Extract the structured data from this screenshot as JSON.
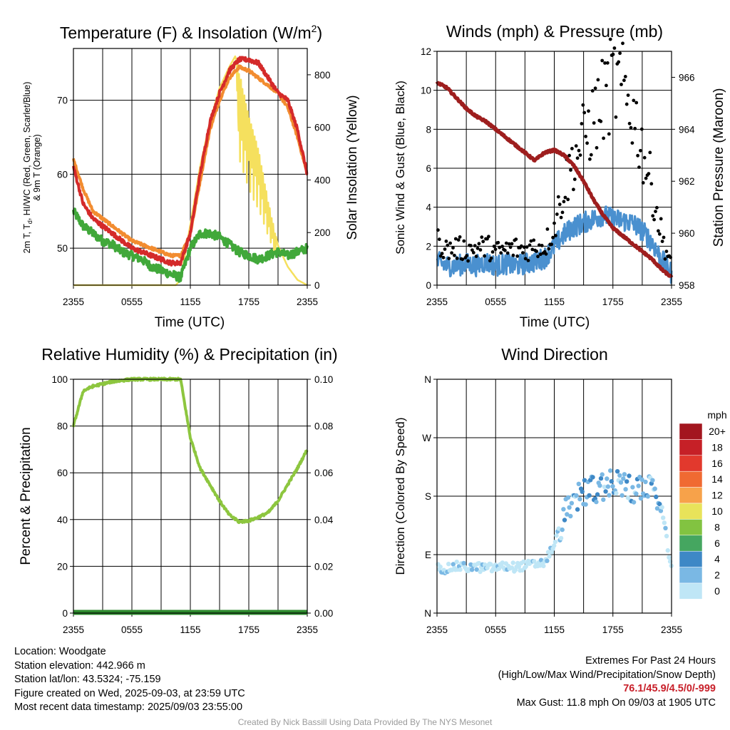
{
  "panels": {
    "temperature": {
      "title_main": "Temperature (F) & Insolation (W/m",
      "title_sup": "2",
      "title_end": ")",
      "ylabel_left_1_parts": [
        "2m T, T",
        "d",
        ", HI/WC (Red, Green, Scarlet/Blue)"
      ],
      "ylabel_left_2": "& 9m T (Orange)",
      "ylabel_right": "Solar Insolation (Yellow)",
      "xlabel": "Time (UTC)"
    },
    "winds": {
      "title": "Winds (mph) & Pressure (mb)",
      "ylabel_left": "Sonic Wind & Gust (Blue, Black)",
      "ylabel_right": "Station Pressure (Maroon)",
      "xlabel": "Time (UTC)"
    },
    "humidity": {
      "title": "Relative Humidity (%) & Precipitation (in)",
      "ylabel_left": "Percent & Precipitation"
    },
    "direction": {
      "title": "Wind Direction",
      "ylabel_left": "Direction (Colored By Speed)",
      "colorbar_title": "mph",
      "colorbar_labels": [
        "20+",
        "18",
        "16",
        "14",
        "12",
        "10",
        "8",
        "6",
        "4",
        "2",
        "0"
      ],
      "colorbar_colors": [
        "#a3161f",
        "#c62027",
        "#e2392d",
        "#f06a32",
        "#f7a24a",
        "#e8e35a",
        "#82c341",
        "#45a660",
        "#3e88c6",
        "#7ab8e4",
        "#bfe6f6"
      ]
    }
  },
  "chart_data": [
    {
      "type": "line",
      "title": "Temperature (F) & Insolation (W/m2)",
      "xlabel": "Time (UTC)",
      "x_ticks": [
        "2355",
        "0555",
        "1155",
        "1755",
        "2355"
      ],
      "ylim": [
        45,
        77
      ],
      "y_ticks": [
        50,
        60,
        70
      ],
      "y2lim": [
        0,
        900
      ],
      "y2_ticks": [
        0,
        200,
        400,
        600,
        800
      ],
      "series": [
        {
          "name": "2m T",
          "color": "#d42a2a",
          "x_hours": [
            0,
            1,
            2,
            3,
            4,
            5,
            6,
            7,
            8,
            9,
            10,
            11,
            12,
            13,
            14,
            15,
            16,
            17,
            18,
            19,
            20,
            21,
            22,
            23,
            24
          ],
          "values": [
            61,
            56,
            54,
            53,
            52,
            51,
            50,
            49.5,
            49,
            48.5,
            48,
            48,
            52,
            60,
            67,
            71,
            74,
            75.5,
            75.5,
            75,
            73,
            71,
            70,
            66,
            60
          ]
        },
        {
          "name": "9m T",
          "color": "#f28c30",
          "x_hours": [
            0,
            1,
            2,
            3,
            4,
            5,
            6,
            7,
            8,
            9,
            10,
            11,
            12,
            13,
            14,
            15,
            16,
            17,
            18,
            19,
            20,
            21,
            22,
            23,
            24
          ],
          "values": [
            62,
            58,
            55,
            54,
            53,
            52,
            51,
            50.5,
            50,
            49.5,
            49,
            49,
            52,
            59,
            66,
            70,
            73,
            74.5,
            74,
            73,
            72,
            71,
            69,
            65,
            60
          ]
        },
        {
          "name": "Td",
          "color": "#41a83a",
          "x_hours": [
            0,
            1,
            2,
            3,
            4,
            5,
            6,
            7,
            8,
            9,
            10,
            11,
            12,
            13,
            14,
            15,
            16,
            17,
            18,
            19,
            20,
            21,
            22,
            23,
            24
          ],
          "values": [
            55,
            53,
            52,
            51,
            50.5,
            49.5,
            49,
            48.5,
            47.5,
            47,
            46.5,
            46,
            50,
            52,
            52,
            51.5,
            50.5,
            49.5,
            49,
            48.5,
            49,
            49.5,
            49,
            49.5,
            50
          ]
        },
        {
          "name": "Solar Insolation",
          "axis": "right",
          "color": "#f5e05e",
          "x_hours": [
            0,
            10.5,
            11,
            12,
            13,
            14,
            15,
            16,
            16.6,
            17,
            18,
            19,
            20,
            21,
            22,
            23,
            24
          ],
          "values": [
            0,
            0,
            20,
            230,
            450,
            620,
            750,
            830,
            870,
            820,
            650,
            520,
            320,
            150,
            70,
            20,
            0
          ]
        }
      ]
    },
    {
      "type": "line",
      "title": "Winds (mph) & Pressure (mb)",
      "xlabel": "Time (UTC)",
      "x_ticks": [
        "2355",
        "0555",
        "1155",
        "1755",
        "2355"
      ],
      "ylim": [
        0,
        12
      ],
      "y_ticks": [
        0,
        2,
        4,
        6,
        8,
        10,
        12
      ],
      "y2lim": [
        958,
        967
      ],
      "y2_ticks": [
        958,
        960,
        962,
        964,
        966
      ],
      "series": [
        {
          "name": "Sonic Wind",
          "color": "#4a90cf",
          "x_hours": [
            0,
            1,
            2,
            3,
            4,
            5,
            6,
            7,
            8,
            9,
            10,
            11,
            12,
            13,
            14,
            15,
            16,
            17,
            18,
            19,
            20,
            21,
            22,
            23,
            24
          ],
          "values": [
            1.2,
            1.0,
            1.0,
            1.1,
            1.0,
            1.2,
            1.0,
            1.1,
            1.0,
            1.1,
            1.2,
            1.4,
            2.0,
            2.6,
            3.0,
            3.2,
            3.4,
            3.6,
            3.4,
            3.3,
            3.2,
            2.8,
            2.2,
            1.3,
            0.6
          ]
        },
        {
          "name": "Gust",
          "color": "#000000",
          "x_hours": [
            0,
            1,
            2,
            3,
            4,
            5,
            6,
            7,
            8,
            9,
            10,
            11,
            12,
            13,
            14,
            15,
            16,
            17,
            18,
            19,
            20,
            21,
            22,
            23,
            24
          ],
          "values": [
            2.3,
            1.8,
            1.9,
            1.8,
            1.9,
            2.0,
            1.7,
            1.8,
            1.9,
            1.8,
            2.0,
            2.0,
            3.0,
            5.0,
            6.5,
            7.5,
            8.5,
            9.5,
            10.5,
            10.0,
            9.0,
            7.0,
            5.0,
            2.5,
            1.0
          ]
        },
        {
          "name": "Station Pressure",
          "axis": "right",
          "color": "#9e1e1e",
          "x_hours": [
            0,
            1,
            2,
            3,
            4,
            5,
            6,
            7,
            8,
            9,
            10,
            11,
            12,
            13,
            14,
            15,
            16,
            17,
            18,
            19,
            20,
            21,
            22,
            23,
            24
          ],
          "values": [
            965.8,
            965.6,
            965.2,
            964.8,
            964.5,
            964.3,
            964.0,
            963.7,
            963.4,
            963.1,
            962.8,
            963.1,
            963.2,
            963.0,
            962.6,
            962.0,
            961.3,
            960.7,
            960.2,
            959.9,
            959.6,
            959.3,
            959.0,
            958.6,
            958.3
          ]
        }
      ]
    },
    {
      "type": "line",
      "title": "Relative Humidity (%) & Precipitation (in)",
      "x_ticks": [
        "2355",
        "0555",
        "1155",
        "1755",
        "2355"
      ],
      "ylim": [
        0,
        100
      ],
      "y_ticks": [
        0,
        20,
        40,
        60,
        80,
        100
      ],
      "y2lim": [
        0,
        0.1
      ],
      "y2_ticks": [
        "0.00",
        "0.02",
        "0.04",
        "0.06",
        "0.08",
        "0.10"
      ],
      "series": [
        {
          "name": "Relative Humidity",
          "color": "#8dc63f",
          "x_hours": [
            0,
            1,
            2,
            3,
            4,
            5,
            6,
            7,
            8,
            9,
            10,
            11,
            12,
            13,
            14,
            15,
            16,
            17,
            18,
            19,
            20,
            21,
            22,
            23,
            24
          ],
          "values": [
            80,
            95,
            97,
            98,
            99,
            99.5,
            100,
            100,
            100,
            100,
            100,
            100,
            75,
            62,
            55,
            48,
            42,
            39,
            39.5,
            41,
            43,
            48,
            55,
            62,
            70
          ]
        },
        {
          "name": "Precipitation",
          "axis": "right",
          "color": "#2e8b2e",
          "x_hours": [
            0,
            24
          ],
          "values": [
            0,
            0
          ]
        }
      ]
    },
    {
      "type": "scatter",
      "title": "Wind Direction",
      "x_ticks": [
        "2355",
        "0555",
        "1155",
        "1755",
        "2355"
      ],
      "y_ticks": [
        "N",
        "E",
        "S",
        "W",
        "N"
      ],
      "ylim": [
        0,
        360
      ],
      "colorbar": {
        "title": "mph",
        "levels": [
          0,
          2,
          4,
          6,
          8,
          10,
          12,
          14,
          16,
          18,
          20
        ]
      },
      "x_hours": [
        0,
        1,
        2,
        3,
        4,
        5,
        6,
        7,
        8,
        9,
        10,
        11,
        12,
        13,
        14,
        15,
        16,
        17,
        18,
        19,
        20,
        21,
        22,
        23,
        24
      ],
      "values": [
        70,
        68,
        72,
        70,
        71,
        69,
        70,
        72,
        71,
        73,
        75,
        78,
        105,
        150,
        180,
        185,
        190,
        195,
        200,
        195,
        190,
        195,
        185,
        160,
        65
      ]
    }
  ],
  "info": {
    "location": "Location: Woodgate",
    "elevation": "Station elevation: 442.966 m",
    "latlon": "Station lat/lon: 43.5324; -75.159",
    "created": "Figure created on Wed, 2025-09-03, at 23:59 UTC",
    "recent": "Most recent data timestamp: 2025/09/03 23:55:00"
  },
  "extremes": {
    "title": "Extremes For Past 24 Hours",
    "subtitle": "(High/Low/Max Wind/Precipitation/Snow Depth)",
    "values": "76.1/45.9/4.5/0/-999",
    "max_gust": "Max Gust: 11.8 mph On 09/03 at 1905 UTC",
    "values_color": "#c8202a"
  },
  "footer": "Created By Nick Bassill Using Data Provided By The NYS Mesonet"
}
